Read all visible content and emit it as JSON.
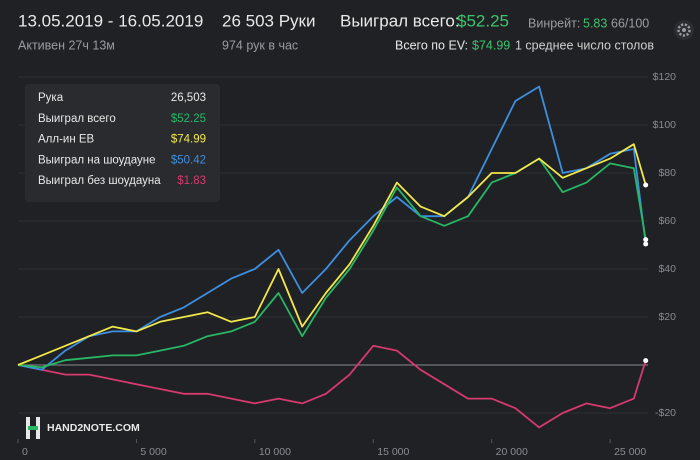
{
  "header": {
    "dates": "13.05.2019 - 16.05.2019",
    "active": "Активен 27ч 13м",
    "hands": "26 503 Руки",
    "rate": "974 рук в час",
    "won_label": "Выиграл всего:",
    "won_value": "$52.25",
    "ev_label": "Всего по EV:",
    "ev_value": "$74.99",
    "winrate_label": "Винрейт:",
    "winrate_value": "5.83",
    "winrate_unit": "66/100",
    "tables": "1 среднее число столов"
  },
  "tooltip": {
    "hand_label": "Рука",
    "hand_value": "26,503"
  },
  "watermark": "HAND2NOTE.COM",
  "chart_data": {
    "type": "line",
    "x": [
      0,
      1000,
      2000,
      3000,
      4000,
      5000,
      6000,
      7000,
      8000,
      9000,
      10000,
      11000,
      12000,
      13000,
      14000,
      15000,
      16000,
      17000,
      18000,
      19000,
      20000,
      21000,
      22000,
      23000,
      24000,
      25000,
      26000,
      26503
    ],
    "series": [
      {
        "name": "Выиграл всего",
        "color": "#27b765",
        "last_label": "$52.25",
        "values": [
          0,
          -1,
          2,
          3,
          4,
          4,
          6,
          8,
          12,
          14,
          18,
          30,
          12,
          28,
          40,
          56,
          74,
          62,
          58,
          62,
          76,
          80,
          86,
          72,
          76,
          84,
          82,
          52.25
        ]
      },
      {
        "name": "Алл-ин EB",
        "color": "#f2e84a",
        "last_label": "$74.99",
        "values": [
          0,
          4,
          8,
          12,
          16,
          14,
          18,
          20,
          22,
          18,
          20,
          40,
          16,
          30,
          42,
          58,
          76,
          66,
          62,
          70,
          80,
          80,
          86,
          78,
          82,
          86,
          92,
          74.99
        ]
      },
      {
        "name": "Выиграл на шоудауне",
        "color": "#3d8fe0",
        "last_label": "$50.42",
        "values": [
          0,
          -2,
          6,
          12,
          14,
          14,
          20,
          24,
          30,
          36,
          40,
          48,
          30,
          40,
          52,
          62,
          70,
          62,
          62,
          70,
          90,
          110,
          116,
          80,
          82,
          88,
          90,
          50.42
        ]
      },
      {
        "name": "Выиграл без шоудауна",
        "color": "#d63a6e",
        "last_label": "$1.83",
        "values": [
          0,
          -2,
          -4,
          -4,
          -6,
          -8,
          -10,
          -12,
          -12,
          -14,
          -16,
          -14,
          -16,
          -12,
          -4,
          8,
          6,
          -2,
          -8,
          -14,
          -14,
          -18,
          -26,
          -20,
          -16,
          -18,
          -14,
          1.83
        ]
      }
    ],
    "xlim": [
      0,
      26600
    ],
    "ylim": [
      -30,
      125
    ],
    "xticks": [
      0,
      {
        "value": 5000,
        "label": "5 000"
      },
      {
        "value": 10000,
        "label": "10 000"
      },
      {
        "value": 15000,
        "label": "15 000"
      },
      {
        "value": 20000,
        "label": "20 000"
      },
      {
        "value": 25000,
        "label": "25 000"
      }
    ],
    "yticks": [
      {
        "value": -20,
        "label": "-$20"
      },
      {
        "value": 20,
        "label": "$20"
      },
      {
        "value": 40,
        "label": "$40"
      },
      {
        "value": 60,
        "label": "$60"
      },
      {
        "value": 80,
        "label": "$80"
      },
      {
        "value": 100,
        "label": "$100"
      },
      {
        "value": 120,
        "label": "$120"
      }
    ],
    "grid": true
  }
}
